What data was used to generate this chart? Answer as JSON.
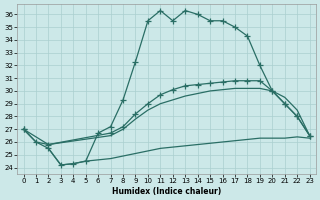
{
  "bg_color": "#cce8e8",
  "line_color": "#2a6e65",
  "grid_color": "#aacfcf",
  "xlabel": "Humidex (Indice chaleur)",
  "xlim": [
    -0.5,
    23.5
  ],
  "ylim": [
    23.5,
    36.8
  ],
  "xticks": [
    0,
    1,
    2,
    3,
    4,
    5,
    6,
    7,
    8,
    9,
    10,
    11,
    12,
    13,
    14,
    15,
    16,
    17,
    18,
    19,
    20,
    21,
    22,
    23
  ],
  "yticks": [
    24,
    25,
    26,
    27,
    28,
    29,
    30,
    31,
    32,
    33,
    34,
    35,
    36
  ],
  "curve1_x": [
    0,
    1,
    2,
    3,
    4,
    5,
    6,
    7,
    8,
    9,
    10,
    11,
    12,
    13,
    14,
    15,
    16,
    17,
    18,
    19,
    20,
    21,
    22,
    23
  ],
  "curve1_y": [
    27.0,
    26.0,
    25.5,
    24.2,
    24.3,
    24.5,
    26.7,
    27.2,
    29.3,
    32.3,
    35.5,
    36.3,
    35.5,
    36.3,
    36.0,
    35.5,
    35.5,
    35.0,
    34.3,
    32.0,
    30.0,
    29.0,
    28.0,
    26.5
  ],
  "curve2_x": [
    0,
    2,
    7,
    8,
    9,
    10,
    11,
    12,
    13,
    14,
    15,
    16,
    17,
    18,
    19,
    20,
    21,
    22,
    23
  ],
  "curve2_y": [
    27.0,
    25.8,
    26.7,
    27.2,
    28.2,
    29.0,
    29.7,
    30.1,
    30.4,
    30.5,
    30.6,
    30.7,
    30.8,
    30.8,
    30.8,
    30.0,
    29.0,
    28.0,
    26.5
  ],
  "curve3_x": [
    0,
    1,
    2,
    7,
    8,
    9,
    10,
    11,
    12,
    13,
    14,
    15,
    16,
    17,
    18,
    19,
    20,
    21,
    22,
    23
  ],
  "curve3_y": [
    27.0,
    26.0,
    25.8,
    26.5,
    27.0,
    27.8,
    28.5,
    29.0,
    29.3,
    29.6,
    29.8,
    30.0,
    30.1,
    30.2,
    30.2,
    30.2,
    30.0,
    29.5,
    28.5,
    26.5
  ],
  "curve4_x": [
    2,
    3,
    4,
    5,
    6,
    7,
    8,
    9,
    10,
    11,
    12,
    13,
    14,
    15,
    16,
    17,
    18,
    19,
    20,
    21,
    22,
    23
  ],
  "curve4_y": [
    25.5,
    24.2,
    24.3,
    24.5,
    24.6,
    24.7,
    24.9,
    25.1,
    25.3,
    25.5,
    25.6,
    25.7,
    25.8,
    25.9,
    26.0,
    26.1,
    26.2,
    26.3,
    26.3,
    26.3,
    26.4,
    26.3
  ]
}
